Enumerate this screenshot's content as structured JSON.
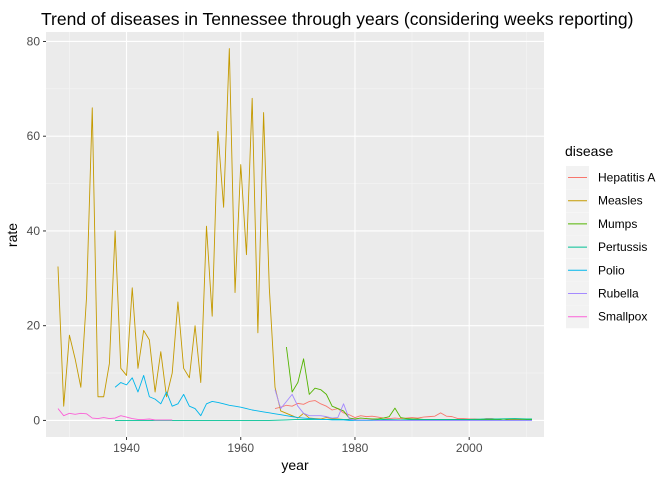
{
  "chart_data": {
    "type": "line",
    "title": "Trend of diseases in Tennessee through years (considering weeks reporting)",
    "xlabel": "year",
    "ylabel": "rate",
    "xlim": [
      1925.9,
      2013.1
    ],
    "ylim": [
      -3.5,
      82.0
    ],
    "xticks": [
      1940,
      1960,
      1980,
      2000
    ],
    "yticks": [
      0,
      20,
      40,
      60,
      80
    ],
    "grid": true,
    "legend": {
      "title": "disease",
      "position": "right"
    },
    "series": [
      {
        "name": "Hepatitis A",
        "color": "#F8766D",
        "x": [
          1966,
          1967,
          1968,
          1969,
          1970,
          1971,
          1972,
          1973,
          1974,
          1975,
          1976,
          1977,
          1978,
          1979,
          1980,
          1981,
          1982,
          1983,
          1984,
          1985,
          1986,
          1987,
          1988,
          1989,
          1990,
          1991,
          1992,
          1993,
          1994,
          1995,
          1996,
          1997,
          1998,
          1999,
          2000,
          2001,
          2002,
          2003,
          2004,
          2005,
          2006,
          2007,
          2008,
          2009,
          2010,
          2011
        ],
        "values": [
          2.5,
          2.8,
          3.2,
          3.0,
          3.6,
          3.4,
          4.0,
          4.2,
          3.5,
          3.0,
          2.2,
          2.5,
          1.6,
          1.2,
          0.6,
          1.0,
          0.8,
          0.9,
          0.7,
          0.5,
          0.4,
          0.5,
          0.4,
          0.5,
          0.6,
          0.5,
          0.7,
          0.8,
          0.9,
          1.6,
          0.9,
          0.8,
          0.4,
          0.4,
          0.3,
          0.3,
          0.2,
          0.4,
          0.4,
          0.2,
          0.3,
          0.3,
          0.2,
          0.2,
          0.1,
          0.1
        ]
      },
      {
        "name": "Measles",
        "color": "#C49A00",
        "x": [
          1928,
          1929,
          1930,
          1931,
          1932,
          1933,
          1934,
          1935,
          1936,
          1937,
          1938,
          1939,
          1940,
          1941,
          1942,
          1943,
          1944,
          1945,
          1946,
          1947,
          1948,
          1949,
          1950,
          1951,
          1952,
          1953,
          1954,
          1955,
          1956,
          1957,
          1958,
          1959,
          1960,
          1961,
          1962,
          1963,
          1964,
          1965,
          1966,
          1967,
          1968,
          1969,
          1970,
          1971,
          1972,
          1973,
          1974,
          1975,
          1976,
          1977,
          1978,
          1979,
          1980,
          1981,
          1982,
          1983,
          1984,
          1985,
          1986,
          1987,
          1988,
          1989,
          1990,
          1991,
          1992,
          1993,
          1994,
          1995,
          1996,
          1997,
          1998,
          1999,
          2000,
          2001,
          2002
        ],
        "values": [
          32.5,
          3.0,
          18.0,
          13.0,
          7.0,
          26.0,
          66.0,
          5.0,
          5.0,
          12.0,
          40.0,
          11.0,
          9.5,
          28.0,
          11.0,
          19.0,
          17.0,
          6.0,
          14.5,
          5.0,
          10.0,
          25.0,
          11.0,
          9.0,
          20.0,
          8.0,
          41.0,
          22.0,
          61.0,
          45.0,
          78.5,
          27.0,
          54.0,
          35.0,
          68.0,
          18.5,
          65.0,
          28.0,
          7.0,
          2.0,
          1.5,
          1.0,
          0.5,
          1.5,
          0.5,
          0.4,
          0.3,
          0.6,
          0.4,
          0.3,
          0.2,
          0.2,
          0.1,
          0.1,
          0.1,
          0.1,
          0.1,
          0.1,
          0.1,
          0.1,
          0.1,
          0.1,
          0.2,
          0.1,
          0.1,
          0.1,
          0.1,
          0.1,
          0.1,
          0.1,
          0.1,
          0.1,
          0.1,
          0.1,
          0.1
        ]
      },
      {
        "name": "Mumps",
        "color": "#53B400",
        "x": [
          1968,
          1969,
          1970,
          1971,
          1972,
          1973,
          1974,
          1975,
          1976,
          1977,
          1978,
          1979,
          1980,
          1981,
          1982,
          1983,
          1984,
          1985,
          1986,
          1987,
          1988,
          1989,
          1990,
          1991,
          1992,
          1993,
          1994,
          1995,
          1996,
          1997,
          1998,
          1999,
          2000,
          2001,
          2002,
          2003,
          2004,
          2005,
          2006,
          2007,
          2008,
          2009,
          2010,
          2011
        ],
        "values": [
          15.5,
          6.0,
          8.0,
          13.0,
          5.5,
          6.8,
          6.5,
          5.5,
          3.0,
          2.5,
          2.0,
          0.5,
          0.3,
          0.5,
          0.4,
          0.3,
          0.3,
          0.5,
          0.8,
          2.6,
          0.6,
          0.4,
          0.3,
          0.3,
          0.2,
          0.2,
          0.2,
          0.2,
          0.2,
          0.1,
          0.1,
          0.1,
          0.1,
          0.1,
          0.1,
          0.1,
          0.1,
          0.1,
          0.3,
          0.1,
          0.1,
          0.1,
          0.1,
          0.1
        ]
      },
      {
        "name": "Pertussis",
        "color": "#00C094",
        "x": [
          1938,
          1940,
          1945,
          1950,
          1955,
          1960,
          1965,
          1968,
          1970,
          1972,
          1975,
          1978,
          1980,
          1983,
          1985,
          1988,
          1990,
          1993,
          1995,
          1998,
          2000,
          2003,
          2005,
          2008,
          2010,
          2011
        ],
        "values": [
          0.0,
          0.0,
          0.0,
          0.0,
          0.0,
          0.0,
          0.0,
          0.1,
          0.2,
          0.2,
          0.2,
          0.2,
          0.1,
          0.1,
          0.2,
          0.1,
          0.2,
          0.2,
          0.2,
          0.2,
          0.2,
          0.3,
          0.3,
          0.4,
          0.3,
          0.3
        ]
      },
      {
        "name": "Polio",
        "color": "#00B6EB",
        "x": [
          1938,
          1939,
          1940,
          1941,
          1942,
          1943,
          1944,
          1945,
          1946,
          1947,
          1948,
          1949,
          1950,
          1951,
          1952,
          1953,
          1954,
          1955,
          1956,
          1957,
          1958,
          1959,
          1960,
          1961,
          1962,
          1963,
          1964,
          1965,
          1966,
          1967,
          1968,
          1969,
          1970,
          1971,
          1972,
          1973,
          1974,
          1975,
          1976,
          1977,
          1978,
          1979,
          1980,
          1985,
          1990,
          1995,
          2000,
          2005,
          2010,
          2011
        ],
        "values": [
          7.0,
          8.0,
          7.5,
          9.0,
          6.0,
          9.5,
          5.0,
          4.5,
          3.5,
          6.0,
          3.0,
          3.5,
          5.5,
          3.0,
          2.5,
          1.0,
          3.5,
          4.0,
          3.8,
          3.5,
          3.2,
          3.0,
          2.8,
          2.5,
          2.2,
          2.0,
          1.8,
          1.6,
          1.4,
          1.2,
          1.0,
          0.8,
          0.6,
          0.5,
          0.4,
          0.3,
          0.2,
          0.2,
          0.1,
          0.1,
          0.1,
          0.0,
          0.0,
          0.0,
          0.0,
          0.0,
          0.0,
          0.0,
          0.0,
          0.0
        ]
      },
      {
        "name": "Rubella",
        "color": "#A58AFF",
        "x": [
          1966,
          1967,
          1968,
          1969,
          1970,
          1971,
          1972,
          1973,
          1974,
          1975,
          1976,
          1977,
          1978,
          1979,
          1980,
          1981,
          1982,
          1983,
          1984,
          1985,
          1990,
          1995,
          2000,
          2005,
          2010,
          2011
        ],
        "values": [
          6.5,
          2.5,
          4.0,
          5.5,
          3.0,
          1.5,
          1.0,
          1.0,
          1.0,
          0.8,
          0.5,
          0.6,
          3.5,
          0.3,
          0.1,
          0.1,
          0.1,
          0.1,
          0.0,
          0.0,
          0.0,
          0.0,
          0.0,
          0.0,
          0.0,
          0.0
        ]
      },
      {
        "name": "Smallpox",
        "color": "#FB61D7",
        "x": [
          1928,
          1929,
          1930,
          1931,
          1932,
          1933,
          1934,
          1935,
          1936,
          1937,
          1938,
          1939,
          1940,
          1941,
          1942,
          1943,
          1944,
          1945,
          1946,
          1947,
          1948
        ],
        "values": [
          2.5,
          1.0,
          1.5,
          1.3,
          1.5,
          1.4,
          0.5,
          0.4,
          0.6,
          0.4,
          0.5,
          1.0,
          0.7,
          0.4,
          0.2,
          0.2,
          0.3,
          0.1,
          0.1,
          0.1,
          0.1
        ]
      }
    ]
  }
}
